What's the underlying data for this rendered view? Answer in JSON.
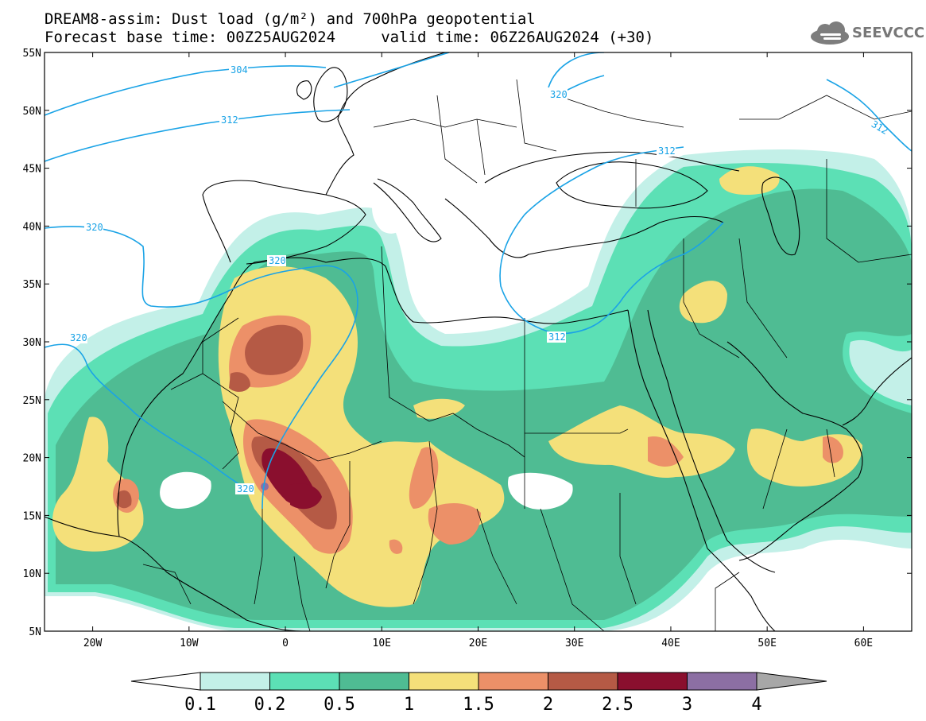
{
  "title_line1": "DREAM8-assim: Dust load (g/m²) and 700hPa geopotential",
  "title_line2": "Forecast base time: 00Z25AUG2024     valid time: 06Z26AUG2024 (+30)",
  "logo_text": "SEEVCCC",
  "logo_icon": "cloud-icon",
  "map": {
    "lon_range": [
      -25,
      65
    ],
    "lat_range": [
      5,
      55
    ],
    "lat_ticks": [
      "55N",
      "50N",
      "45N",
      "40N",
      "35N",
      "30N",
      "25N",
      "20N",
      "15N",
      "10N",
      "5N"
    ],
    "lon_ticks": [
      "20W",
      "10W",
      "0",
      "10E",
      "20E",
      "30E",
      "40E",
      "50E",
      "60E"
    ],
    "contour_labels": [
      "304",
      "312",
      "320",
      "320",
      "320",
      "320",
      "320",
      "312",
      "312",
      "312"
    ],
    "contour_color": "#1aa3e6"
  },
  "colorbar": {
    "labels": [
      "0.1",
      "0.2",
      "0.5",
      "1",
      "1.5",
      "2",
      "2.5",
      "3",
      "4"
    ],
    "colors": [
      "#ffffff",
      "#c3f0e8",
      "#5ce0b5",
      "#4fbc93",
      "#f4e07a",
      "#ec9068",
      "#b55a45",
      "#8a0f2e",
      "#8c6fa3",
      "#a7a7a7"
    ]
  }
}
